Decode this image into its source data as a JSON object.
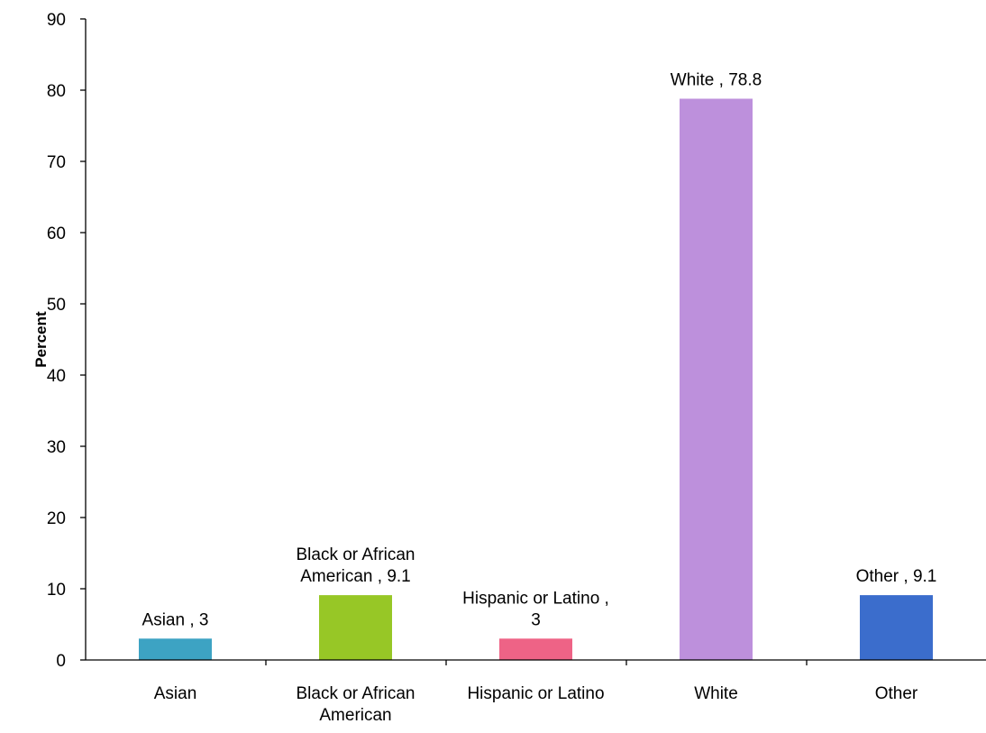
{
  "chart_data": {
    "type": "bar",
    "title": "",
    "xlabel": "",
    "ylabel": "Percent",
    "ylim": [
      0,
      90
    ],
    "yticks": [
      0,
      10,
      20,
      30,
      40,
      50,
      60,
      70,
      80,
      90
    ],
    "grid": false,
    "legend": "none",
    "categories": [
      [
        "Asian"
      ],
      [
        "Black or African",
        "American"
      ],
      [
        "Hispanic or Latino"
      ],
      [
        "White"
      ],
      [
        "Other"
      ]
    ],
    "values": [
      3,
      9.1,
      3,
      78.8,
      9.1
    ],
    "data_labels": [
      [
        "Asian , 3"
      ],
      [
        "Black or African",
        "American , 9.1"
      ],
      [
        "Hispanic or Latino ,",
        "3"
      ],
      [
        "White , 78.8"
      ],
      [
        "Other  , 9.1"
      ]
    ],
    "colors": [
      "#3da3c3",
      "#97c726",
      "#ee6386",
      "#bd90dc",
      "#3b6dcc"
    ]
  }
}
